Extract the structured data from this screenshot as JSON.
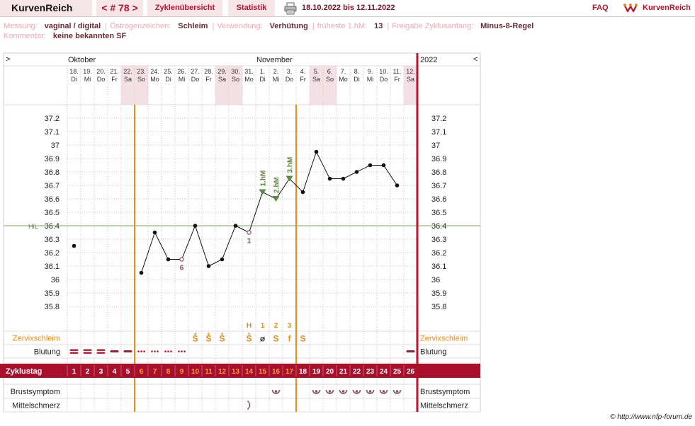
{
  "app": {
    "title": "KurvenReich",
    "logo_text": "KurvenReich",
    "faq": "FAQ"
  },
  "nav": {
    "cycle": "< # 78 >",
    "tab_overview": "Zyklenübersicht",
    "tab_stats": "Statistik",
    "print_icon": "printer-icon"
  },
  "date_range": "18.10.2022 bis 12.11.2022",
  "info": {
    "messung_label": "Messung:",
    "messung": "vaginal / digital",
    "oestrogen_label": "Östrogenzeichen:",
    "oestrogen": "Schleim",
    "verwendung_label": "Verwendung:",
    "verwendung": "Verhütung",
    "frueheste_label": "früheste 1.hM:",
    "frueheste": "13",
    "freigabe_label": "Freigabe Zyklusanfang:",
    "freigabe": "Minus-8-Regel",
    "kommentar_label": "Kommentar:",
    "kommentar": "keine bekannten SF"
  },
  "credit": "© http://www.nfp-forum.de",
  "colors": {
    "accent": "#c0102c",
    "cycle_bar": "#a8102c",
    "orange": "#f08a18",
    "green": "#5a8a3a",
    "temp_line": "#111111",
    "weekend": "#f4e0e4"
  },
  "chart_data": {
    "type": "line",
    "nav_left": ">",
    "nav_right": "<",
    "months": [
      {
        "label": "Oktober",
        "start_day": 1
      },
      {
        "label": "November",
        "start_day": 15
      }
    ],
    "year": "2022",
    "dates": [
      "18.",
      "19.",
      "20.",
      "21.",
      "22.",
      "23.",
      "24.",
      "25.",
      "26.",
      "27.",
      "28.",
      "29.",
      "30.",
      "31.",
      "1.",
      "2.",
      "3.",
      "4.",
      "5.",
      "6.",
      "7.",
      "8.",
      "9.",
      "10.",
      "11.",
      "12."
    ],
    "weekdays": [
      "Di",
      "Mi",
      "Do",
      "Fr",
      "Sa",
      "So",
      "Mo",
      "Di",
      "Mi",
      "Do",
      "Fr",
      "Sa",
      "So",
      "Mo",
      "Di",
      "Mi",
      "Do",
      "Fr",
      "Sa",
      "So",
      "Mo",
      "Di",
      "Mi",
      "Do",
      "Fr",
      "Sa"
    ],
    "weekend_days": [
      5,
      6,
      12,
      13,
      19,
      20,
      26
    ],
    "cycle_days": [
      "1",
      "2",
      "3",
      "4",
      "5",
      "6",
      "7",
      "8",
      "9",
      "10",
      "11",
      "12",
      "13",
      "14",
      "15",
      "16",
      "17",
      "18",
      "19",
      "20",
      "21",
      "22",
      "23",
      "24",
      "25",
      "26"
    ],
    "ylim": [
      35.7,
      37.3
    ],
    "y_ticks": [
      "37.2",
      "37.1",
      "37",
      "36.9",
      "36.8",
      "36.7",
      "36.6",
      "36.5",
      "36.4",
      "36.3",
      "36.2",
      "36.1",
      "36",
      "35.9",
      "35.8"
    ],
    "temperatures": [
      36.25,
      null,
      null,
      null,
      null,
      36.05,
      36.35,
      36.15,
      36.15,
      36.4,
      36.1,
      36.15,
      36.4,
      36.35,
      36.65,
      36.6,
      36.75,
      36.65,
      36.95,
      36.75,
      36.75,
      36.8,
      36.85,
      36.85,
      36.7,
      null
    ],
    "line_segments": [
      [
        6,
        25
      ]
    ],
    "hilfslinie": {
      "label": "HiL",
      "value": 36.4
    },
    "high_measurements": [
      {
        "day": 15,
        "label": "1.hM"
      },
      {
        "day": 16,
        "label": "2.hM"
      },
      {
        "day": 17,
        "label": "3.hM"
      }
    ],
    "temp_annotations": [
      {
        "day": 9,
        "label": "6"
      },
      {
        "day": 14,
        "label": "1"
      }
    ],
    "vertical_lines": [
      {
        "after_day": 5,
        "color": "#f08a18"
      },
      {
        "after_day": 17,
        "color": "#f08a18"
      },
      {
        "after_day": 26,
        "color": "#c0102c"
      }
    ],
    "mucus_peak_labels": [
      {
        "day": 14,
        "label": "H"
      },
      {
        "day": 15,
        "label": "1"
      },
      {
        "day": 16,
        "label": "2"
      },
      {
        "day": 17,
        "label": "3"
      }
    ],
    "rows": {
      "zervixschleim_label": "Zervixschleim",
      "zervixschleim": [
        "",
        "",
        "",
        "",
        "",
        "",
        "",
        "",
        "",
        "S+",
        "S+",
        "S+",
        "",
        "S+",
        "ø",
        "S",
        "f",
        "S",
        "",
        "",
        "",
        "",
        "",
        "",
        "",
        ""
      ],
      "blutung_label": "Blutung",
      "blutung": [
        "heavy",
        "heavy",
        "heavy",
        "medium",
        "medium",
        "spotting",
        "spotting",
        "spotting",
        "spotting",
        "",
        "",
        "",
        "",
        "",
        "",
        "",
        "",
        "",
        "",
        "",
        "",
        "",
        "",
        "",
        "",
        "medium"
      ],
      "zyklustag_label": "Zyklustag",
      "brustsymptom_label": "Brustsymptom",
      "brustsymptom": [
        "",
        "",
        "",
        "",
        "",
        "",
        "",
        "",
        "",
        "",
        "",
        "",
        "",
        "",
        "",
        "x",
        "",
        "",
        "x",
        "x",
        "x",
        "x",
        "x",
        "x",
        "x",
        ""
      ],
      "mittelschmerz_label": "Mittelschmerz",
      "mittelschmerz": [
        "",
        "",
        "",
        "",
        "",
        "",
        "",
        "",
        "",
        "",
        "",
        "",
        "",
        "x",
        "",
        "",
        "",
        "",
        "",
        "",
        "",
        "",
        "",
        "",
        "",
        ""
      ]
    }
  }
}
